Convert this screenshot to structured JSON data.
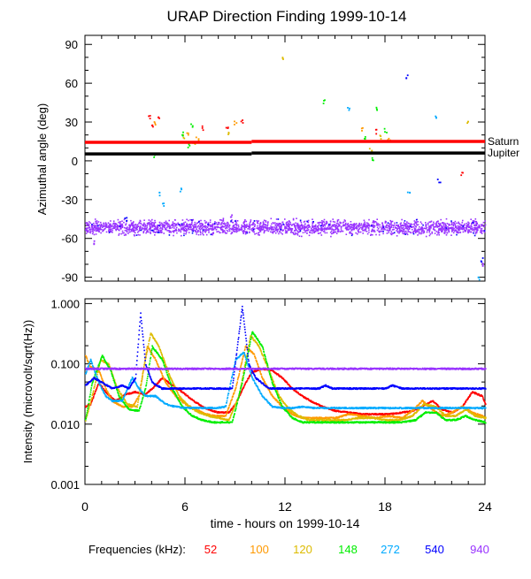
{
  "colors": {
    "f52": "#ff0000",
    "f100": "#ff9900",
    "f120": "#ddbb00",
    "f148": "#00ee00",
    "f272": "#00aaff",
    "f540": "#0000ff",
    "f940": "#9933ff",
    "saturn": "#ff0000",
    "jupiter": "#000000"
  },
  "chart_data": [
    {
      "type": "scatter",
      "title": "URAP Direction Finding  1999-10-14",
      "ylabel": "Azimuthal angle (deg)",
      "xlim": [
        0,
        24
      ],
      "ylim": [
        -93,
        97
      ],
      "yticks": [
        -90,
        -60,
        -30,
        0,
        30,
        60,
        90
      ],
      "reference_lines": [
        {
          "name": "Saturn",
          "value": 15,
          "color_key": "saturn"
        },
        {
          "name": "Jupiter",
          "value": 6,
          "color_key": "jupiter"
        }
      ],
      "bands": [
        {
          "name": "940 kHz band",
          "center": -51,
          "spread": 8,
          "color_key": "f940"
        }
      ],
      "scattered_points": [
        {
          "x": 3.8,
          "y": 34,
          "color_key": "f52"
        },
        {
          "x": 4.0,
          "y": 28,
          "color_key": "f52"
        },
        {
          "x": 4.4,
          "y": 35,
          "color_key": "f52"
        },
        {
          "x": 7.0,
          "y": 26,
          "color_key": "f52"
        },
        {
          "x": 8.5,
          "y": 27,
          "color_key": "f52"
        },
        {
          "x": 9.4,
          "y": 31,
          "color_key": "f52"
        },
        {
          "x": 17.4,
          "y": 23,
          "color_key": "f52"
        },
        {
          "x": 22.6,
          "y": -10,
          "color_key": "f52"
        },
        {
          "x": 4.2,
          "y": 30,
          "color_key": "f100"
        },
        {
          "x": 6.1,
          "y": 22,
          "color_key": "f100"
        },
        {
          "x": 6.7,
          "y": 18,
          "color_key": "f100"
        },
        {
          "x": 9.0,
          "y": 30,
          "color_key": "f100"
        },
        {
          "x": 16.6,
          "y": 25,
          "color_key": "f100"
        },
        {
          "x": 18.2,
          "y": 17,
          "color_key": "f100"
        },
        {
          "x": 5.9,
          "y": 19,
          "color_key": "f120"
        },
        {
          "x": 6.5,
          "y": 14,
          "color_key": "f120"
        },
        {
          "x": 8.6,
          "y": 21,
          "color_key": "f120"
        },
        {
          "x": 11.8,
          "y": 80,
          "color_key": "f120"
        },
        {
          "x": 17.1,
          "y": 9,
          "color_key": "f120"
        },
        {
          "x": 17.7,
          "y": 19,
          "color_key": "f120"
        },
        {
          "x": 22.9,
          "y": 31,
          "color_key": "f120"
        },
        {
          "x": 4.1,
          "y": 5,
          "color_key": "f148"
        },
        {
          "x": 5.8,
          "y": 21,
          "color_key": "f148"
        },
        {
          "x": 6.2,
          "y": 12,
          "color_key": "f148"
        },
        {
          "x": 6.4,
          "y": 28,
          "color_key": "f148"
        },
        {
          "x": 14.3,
          "y": 46,
          "color_key": "f148"
        },
        {
          "x": 16.7,
          "y": 18,
          "color_key": "f148"
        },
        {
          "x": 17.2,
          "y": 2,
          "color_key": "f148"
        },
        {
          "x": 17.5,
          "y": 41,
          "color_key": "f148"
        },
        {
          "x": 18.0,
          "y": 24,
          "color_key": "f148"
        },
        {
          "x": 4.5,
          "y": -25,
          "color_key": "f272"
        },
        {
          "x": 4.7,
          "y": -33,
          "color_key": "f272"
        },
        {
          "x": 5.7,
          "y": -22,
          "color_key": "f272"
        },
        {
          "x": 15.8,
          "y": 40,
          "color_key": "f272"
        },
        {
          "x": 19.4,
          "y": -23,
          "color_key": "f272"
        },
        {
          "x": 21.0,
          "y": 35,
          "color_key": "f272"
        },
        {
          "x": 23.6,
          "y": -90,
          "color_key": "f272"
        },
        {
          "x": 19.3,
          "y": 65,
          "color_key": "f540"
        },
        {
          "x": 21.2,
          "y": -15,
          "color_key": "f540"
        },
        {
          "x": 23.8,
          "y": -76,
          "color_key": "f540"
        },
        {
          "x": 2.4,
          "y": -45,
          "color_key": "f540"
        },
        {
          "x": 8.7,
          "y": -43,
          "color_key": "f940"
        },
        {
          "x": 23.9,
          "y": -80,
          "color_key": "f940"
        },
        {
          "x": 0.5,
          "y": -63,
          "color_key": "f940"
        }
      ]
    },
    {
      "type": "line",
      "ylabel": "Intensity (microvolt/sqrt(Hz))",
      "xlabel": "time - hours on 1999-10-14",
      "xlim": [
        0,
        24
      ],
      "xticks": [
        0,
        6,
        12,
        18,
        24
      ],
      "yscale": "log",
      "ylim": [
        0.001,
        1.2
      ],
      "yticks": [
        {
          "value": 0.001,
          "label": "0.001"
        },
        {
          "value": 0.01,
          "label": "0.010"
        },
        {
          "value": 0.1,
          "label": "0.100"
        },
        {
          "value": 1,
          "label": "1.000"
        }
      ],
      "series": [
        {
          "name": "52",
          "color_key": "f52",
          "x": [
            0,
            0.3,
            0.8,
            1.2,
            1.8,
            2.4,
            3.0,
            3.6,
            4.2,
            4.6,
            5.2,
            5.8,
            6.4,
            7.0,
            7.6,
            8.0,
            8.6,
            9.0,
            9.6,
            10.0,
            10.6,
            11.2,
            11.8,
            12.4,
            13.0,
            13.6,
            14.2,
            15.0,
            15.8,
            16.6,
            17.4,
            18.2,
            19.0,
            19.6,
            20.2,
            20.8,
            21.4,
            22.0,
            22.6,
            23.2,
            23.8,
            24
          ],
          "y": [
            0.02,
            0.022,
            0.05,
            0.035,
            0.025,
            0.032,
            0.035,
            0.032,
            0.045,
            0.06,
            0.045,
            0.035,
            0.026,
            0.02,
            0.017,
            0.016,
            0.016,
            0.022,
            0.05,
            0.075,
            0.085,
            0.08,
            0.06,
            0.04,
            0.03,
            0.024,
            0.02,
            0.017,
            0.016,
            0.015,
            0.015,
            0.015,
            0.016,
            0.017,
            0.02,
            0.025,
            0.018,
            0.016,
            0.02,
            0.035,
            0.03,
            0.022
          ]
        },
        {
          "name": "100",
          "color_key": "f100",
          "x": [
            0,
            0.3,
            0.8,
            1.2,
            1.6,
            2.2,
            2.8,
            3.2,
            3.7,
            4.2,
            4.8,
            5.4,
            6.0,
            6.6,
            7.2,
            7.8,
            8.4,
            9.0,
            9.6,
            10.1,
            10.6,
            11.2,
            11.8,
            12.4,
            13.0,
            13.6,
            14.2,
            15.0,
            15.8,
            16.6,
            17.4,
            18.2,
            19.0,
            19.6,
            20.2,
            20.8,
            21.4,
            22.0,
            22.6,
            23.2,
            23.8,
            24
          ],
          "y": [
            0.14,
            0.09,
            0.08,
            0.04,
            0.025,
            0.02,
            0.02,
            0.03,
            0.2,
            0.12,
            0.05,
            0.03,
            0.022,
            0.018,
            0.015,
            0.014,
            0.014,
            0.04,
            0.2,
            0.15,
            0.06,
            0.03,
            0.02,
            0.015,
            0.013,
            0.013,
            0.013,
            0.013,
            0.015,
            0.014,
            0.013,
            0.014,
            0.013,
            0.017,
            0.025,
            0.018,
            0.014,
            0.016,
            0.02,
            0.016,
            0.014,
            0.013
          ]
        },
        {
          "name": "120",
          "color_key": "f120",
          "x": [
            0,
            0.4,
            0.9,
            1.4,
            1.9,
            2.5,
            3.1,
            3.5,
            3.9,
            4.4,
            5.0,
            5.6,
            6.2,
            6.8,
            7.4,
            8.0,
            8.6,
            9.2,
            9.9,
            10.4,
            11.0,
            11.6,
            12.2,
            12.8,
            13.4,
            14.0,
            14.8,
            15.6,
            16.4,
            17.2,
            18.0,
            18.8,
            19.6,
            20.3,
            21.0,
            21.6,
            22.2,
            22.8,
            23.4,
            24
          ],
          "y": [
            0.012,
            0.03,
            0.12,
            0.1,
            0.04,
            0.022,
            0.02,
            0.09,
            0.33,
            0.2,
            0.07,
            0.03,
            0.02,
            0.016,
            0.014,
            0.013,
            0.012,
            0.03,
            0.3,
            0.2,
            0.08,
            0.03,
            0.018,
            0.014,
            0.012,
            0.012,
            0.012,
            0.012,
            0.013,
            0.013,
            0.012,
            0.012,
            0.014,
            0.022,
            0.02,
            0.014,
            0.014,
            0.018,
            0.014,
            0.013
          ]
        },
        {
          "name": "148",
          "color_key": "f148",
          "x": [
            0,
            0.4,
            1.0,
            1.5,
            2.0,
            2.6,
            3.2,
            3.6,
            4.0,
            4.6,
            5.2,
            5.8,
            6.4,
            7.0,
            7.6,
            8.2,
            8.8,
            9.4,
            10.0,
            10.6,
            11.2,
            11.8,
            12.4,
            13.0,
            13.6,
            14.2,
            15.0,
            15.8,
            16.6,
            17.4,
            18.2,
            19.0,
            19.8,
            20.4,
            21.0,
            21.6,
            22.2,
            22.8,
            23.4,
            24
          ],
          "y": [
            0.012,
            0.05,
            0.14,
            0.08,
            0.03,
            0.018,
            0.017,
            0.04,
            0.2,
            0.12,
            0.04,
            0.02,
            0.014,
            0.012,
            0.011,
            0.011,
            0.011,
            0.05,
            0.35,
            0.2,
            0.05,
            0.02,
            0.013,
            0.011,
            0.011,
            0.011,
            0.011,
            0.011,
            0.011,
            0.011,
            0.011,
            0.011,
            0.012,
            0.016,
            0.016,
            0.012,
            0.012,
            0.014,
            0.012,
            0.011
          ]
        },
        {
          "name": "272",
          "color_key": "f272",
          "x": [
            0,
            0.3,
            0.8,
            1.2,
            1.6,
            2.2,
            2.8,
            3.2,
            3.6,
            4.2,
            4.8,
            5.4,
            6.0,
            6.6,
            7.2,
            7.8,
            8.4,
            9.0,
            9.5,
            10.0,
            10.6,
            11.2,
            11.8,
            12.4,
            13.0,
            13.6,
            14.2,
            15.0,
            15.8,
            16.6,
            17.4,
            18.2,
            19.0,
            19.6,
            20.2,
            20.8,
            21.4,
            22.0,
            22.6,
            23.2,
            23.8,
            24
          ],
          "y": [
            0.07,
            0.12,
            0.05,
            0.03,
            0.025,
            0.025,
            0.06,
            0.04,
            0.03,
            0.03,
            0.022,
            0.02,
            0.019,
            0.019,
            0.019,
            0.019,
            0.02,
            0.12,
            0.16,
            0.06,
            0.03,
            0.02,
            0.019,
            0.019,
            0.02,
            0.019,
            0.019,
            0.019,
            0.019,
            0.019,
            0.019,
            0.019,
            0.019,
            0.019,
            0.019,
            0.019,
            0.019,
            0.019,
            0.019,
            0.019,
            0.019,
            0.019
          ]
        },
        {
          "name": "540",
          "color_key": "f540",
          "x": [
            0,
            0.5,
            1.0,
            1.6,
            2.2,
            2.6,
            3.0,
            3.3,
            3.6,
            4.0,
            4.6,
            5.2,
            6.0,
            7.0,
            8.0,
            8.8,
            9.4,
            9.8,
            10.2,
            11.0,
            12.0,
            13.0,
            14.0,
            14.4,
            14.8,
            15.6,
            16.4,
            17.2,
            18.0,
            18.4,
            19.0,
            20.0,
            21.0,
            22.0,
            23.0,
            24
          ],
          "y": [
            0.045,
            0.06,
            0.05,
            0.04,
            0.045,
            0.04,
            0.06,
            0.7,
            0.1,
            0.05,
            0.04,
            0.04,
            0.04,
            0.04,
            0.04,
            0.04,
            0.9,
            0.1,
            0.06,
            0.04,
            0.04,
            0.04,
            0.04,
            0.045,
            0.04,
            0.04,
            0.04,
            0.04,
            0.04,
            0.045,
            0.04,
            0.04,
            0.04,
            0.04,
            0.04,
            0.04
          ]
        },
        {
          "name": "940",
          "color_key": "f940",
          "x": [
            0,
            1,
            2,
            3,
            4,
            5,
            6,
            7,
            8,
            9,
            10,
            11,
            12,
            13,
            14,
            15,
            16,
            17,
            18,
            19,
            20,
            21,
            22,
            23,
            24
          ],
          "y": [
            0.085,
            0.085,
            0.085,
            0.085,
            0.085,
            0.085,
            0.085,
            0.085,
            0.085,
            0.085,
            0.085,
            0.085,
            0.085,
            0.085,
            0.085,
            0.085,
            0.085,
            0.085,
            0.085,
            0.085,
            0.085,
            0.085,
            0.085,
            0.085,
            0.085
          ]
        }
      ]
    }
  ],
  "legend": {
    "label": "Frequencies (kHz):",
    "entries": [
      {
        "text": "52",
        "color_key": "f52"
      },
      {
        "text": "100",
        "color_key": "f100"
      },
      {
        "text": "120",
        "color_key": "f120"
      },
      {
        "text": "148",
        "color_key": "f148"
      },
      {
        "text": "272",
        "color_key": "f272"
      },
      {
        "text": "540",
        "color_key": "f540"
      },
      {
        "text": "940",
        "color_key": "f940"
      }
    ]
  }
}
